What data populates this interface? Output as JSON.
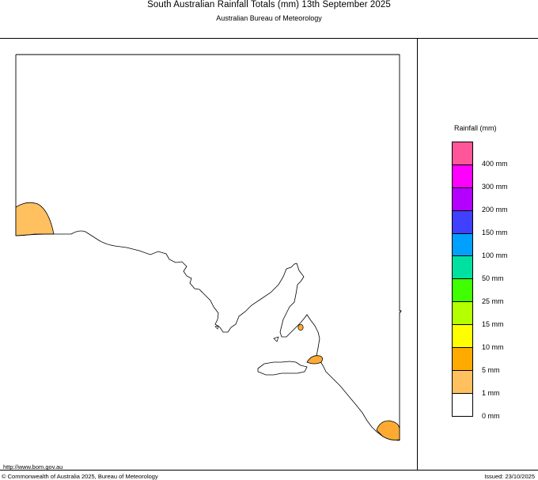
{
  "header": {
    "title": "South Australian Rainfall Totals (mm)   13th September 2025",
    "subtitle": "Australian Bureau of Meteorology"
  },
  "legend": {
    "title": "Rainfall (mm)",
    "swatches": [
      {
        "color": "#ff5599"
      },
      {
        "color": "#ff00ff"
      },
      {
        "color": "#b400ff"
      },
      {
        "color": "#4040ff"
      },
      {
        "color": "#00a0ff"
      },
      {
        "color": "#00e0a0"
      },
      {
        "color": "#40ff00"
      },
      {
        "color": "#b4ff00"
      },
      {
        "color": "#ffff00"
      },
      {
        "color": "#ffaa00"
      },
      {
        "color": "#ffc060"
      },
      {
        "color": "#ffffff"
      }
    ],
    "labels": [
      "400 mm",
      "300 mm",
      "200 mm",
      "150 mm",
      "100 mm",
      "50 mm",
      "25 mm",
      "15 mm",
      "10 mm",
      "5 mm",
      "1 mm",
      "0 mm"
    ]
  },
  "map": {
    "rain_fill_light": "#ffc060",
    "rain_fill_orange": "#ffaa33"
  },
  "footer": {
    "url": "http://www.bom.gov.au",
    "copyright": "© Commonwealth of Australia 2025, Bureau of Meteorology",
    "issued": "Issued: 23/10/2025"
  }
}
